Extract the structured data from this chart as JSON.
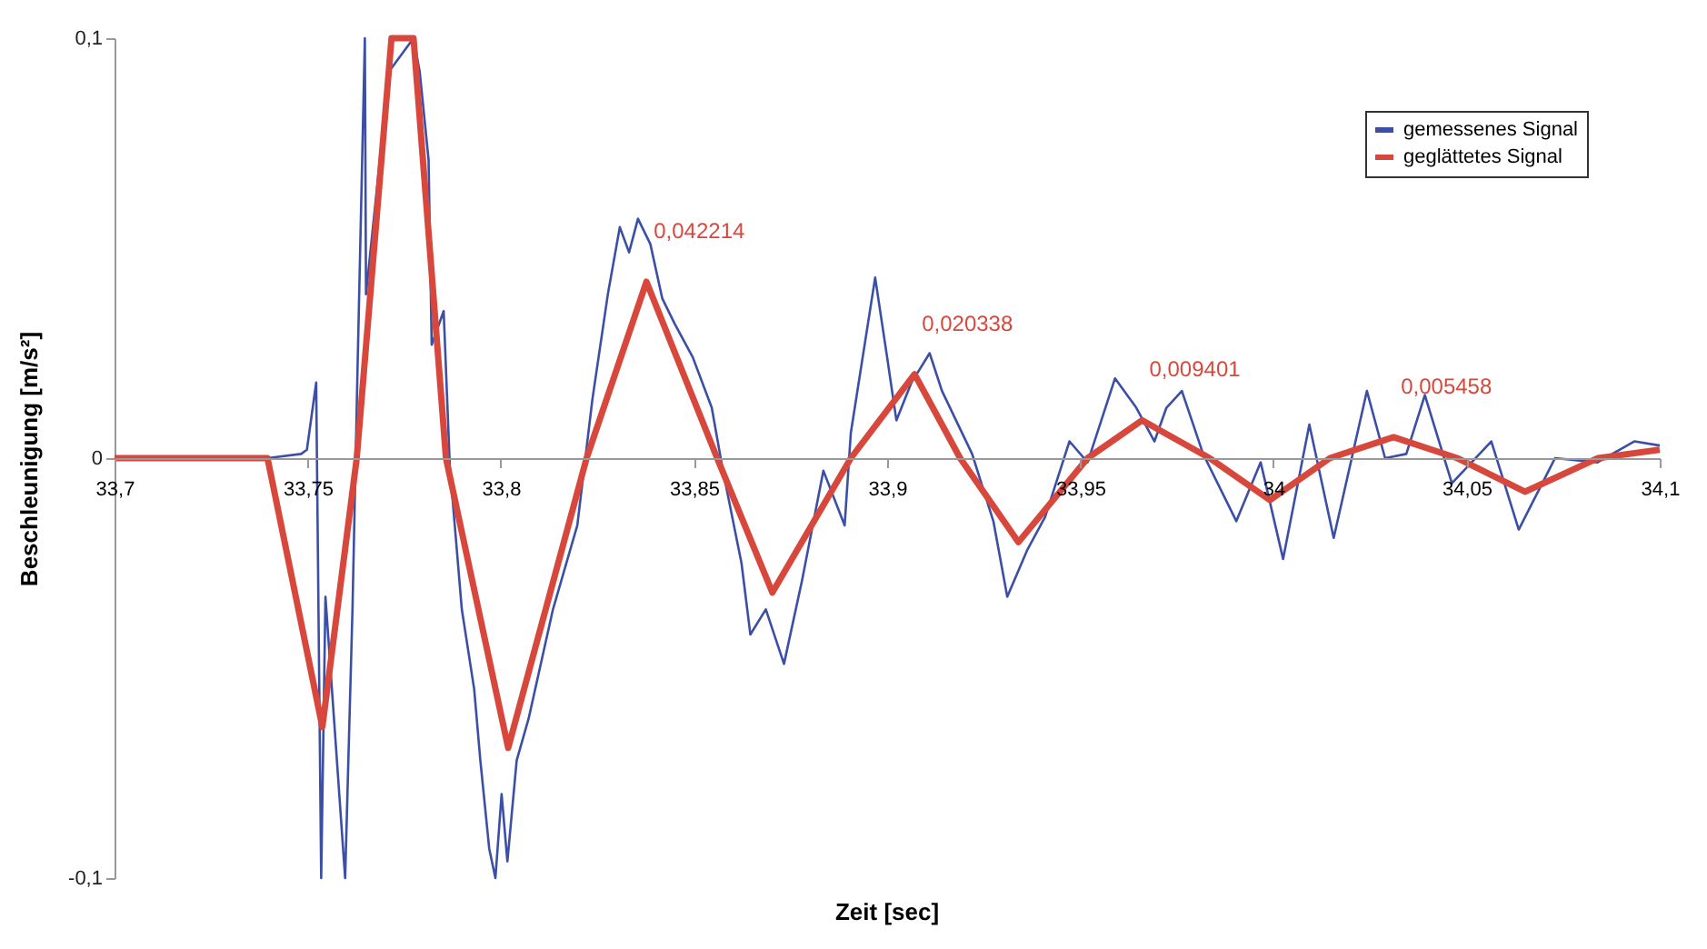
{
  "chart_data": {
    "type": "line",
    "xlabel": "Zeit [sec]",
    "ylabel": "Beschleunigung [m/s²]",
    "xlim": [
      33.7,
      34.1
    ],
    "ylim": [
      -0.1,
      0.1
    ],
    "xticks": [
      {
        "value": 33.7,
        "label": "33,7"
      },
      {
        "value": 33.75,
        "label": "33,75"
      },
      {
        "value": 33.8,
        "label": "33,8"
      },
      {
        "value": 33.85,
        "label": "33,85"
      },
      {
        "value": 33.9,
        "label": "33,9"
      },
      {
        "value": 33.95,
        "label": "33,95"
      },
      {
        "value": 34.0,
        "label": "34"
      },
      {
        "value": 34.05,
        "label": "34,05"
      },
      {
        "value": 34.1,
        "label": "34,1"
      }
    ],
    "yticks": [
      {
        "value": -0.1,
        "label": "-0,1"
      },
      0,
      {
        "value": 0.1,
        "label": "0,1"
      }
    ],
    "grid": false,
    "legend": "top right",
    "marker": "none",
    "line_style": "solid",
    "series": [
      {
        "name": "gemessenes Signal",
        "color": "#3b4fa6",
        "x": [
          33.7,
          33.7396,
          33.7483,
          33.7498,
          33.7522,
          33.7535,
          33.7546,
          33.7597,
          33.7616,
          33.7629,
          33.7648,
          33.7651,
          33.7679,
          33.771,
          33.7774,
          33.779,
          33.7813,
          33.7821,
          33.7852,
          33.7868,
          33.7899,
          33.7931,
          33.7947,
          33.797,
          33.7986,
          33.8002,
          33.8017,
          33.8041,
          33.8072,
          33.8135,
          33.8198,
          33.8237,
          33.8277,
          33.8308,
          33.8332,
          33.8355,
          33.8387,
          33.8418,
          33.845,
          33.8497,
          33.8546,
          33.8575,
          33.8623,
          33.8646,
          33.8686,
          33.8733,
          33.878,
          33.8835,
          33.889,
          33.8906,
          33.8969,
          33.9,
          33.9024,
          33.9063,
          33.911,
          33.9142,
          33.922,
          33.9275,
          33.9311,
          33.9362,
          33.9409,
          33.9472,
          33.9519,
          33.959,
          33.9645,
          33.9692,
          33.9723,
          33.9763,
          33.9818,
          33.9904,
          33.9967,
          34.0025,
          34.0093,
          34.0156,
          34.0242,
          34.0289,
          34.0344,
          34.0392,
          34.0462,
          34.0564,
          34.0635,
          34.0729,
          34.0839,
          34.0934,
          34.1
        ],
        "values": [
          0,
          0,
          0.001,
          0.002,
          0.018,
          -0.1,
          -0.033,
          -0.1,
          -0.036,
          0.021,
          0.1,
          0.039,
          0.064,
          0.092,
          0.1,
          0.092,
          0.071,
          0.027,
          0.035,
          -0.002,
          -0.036,
          -0.055,
          -0.072,
          -0.093,
          -0.1,
          -0.08,
          -0.096,
          -0.072,
          -0.062,
          -0.036,
          -0.016,
          0.014,
          0.039,
          0.055,
          0.049,
          0.057,
          0.051,
          0.038,
          0.032,
          0.024,
          0.012,
          -0.003,
          -0.025,
          -0.042,
          -0.036,
          -0.049,
          -0.029,
          -0.003,
          -0.016,
          0.006,
          0.043,
          0.024,
          0.009,
          0.018,
          0.025,
          0.016,
          0.001,
          -0.015,
          -0.033,
          -0.022,
          -0.014,
          0.004,
          -0.001,
          0.019,
          0.012,
          0.004,
          0.012,
          0.016,
          0.001,
          -0.015,
          -0.001,
          -0.024,
          0.008,
          -0.019,
          0.016,
          0,
          0.001,
          0.015,
          -0.006,
          0.004,
          -0.017,
          0,
          -0.001,
          0.004,
          0.003
        ]
      },
      {
        "name": "geglättetes Signal",
        "color": "#d8473b",
        "x": [
          33.7,
          33.7396,
          33.7538,
          33.7627,
          33.7717,
          33.7774,
          33.7858,
          33.8019,
          33.8222,
          33.8377,
          33.856,
          33.8703,
          33.8906,
          33.9071,
          33.9189,
          33.934,
          33.9519,
          33.966,
          33.9835,
          33.9991,
          34.0146,
          34.0311,
          34.0476,
          34.0651,
          34.084,
          34.1
        ],
        "values": [
          0,
          0,
          -0.064,
          0,
          0.1,
          0.1,
          0,
          -0.069,
          0,
          0.042,
          0,
          -0.032,
          0,
          0.02,
          0,
          -0.02,
          0,
          0.009,
          0,
          -0.01,
          0,
          0.005,
          0,
          -0.008,
          0,
          0.002
        ]
      }
    ],
    "annotations": [
      {
        "text": "0,042214",
        "x": 33.8377,
        "y": 0.042
      },
      {
        "text": "0,020338",
        "x": 33.9071,
        "y": 0.02
      },
      {
        "text": "0,009401",
        "x": 33.966,
        "y": 0.009
      },
      {
        "text": "0,005458",
        "x": 34.0311,
        "y": 0.005
      }
    ]
  }
}
